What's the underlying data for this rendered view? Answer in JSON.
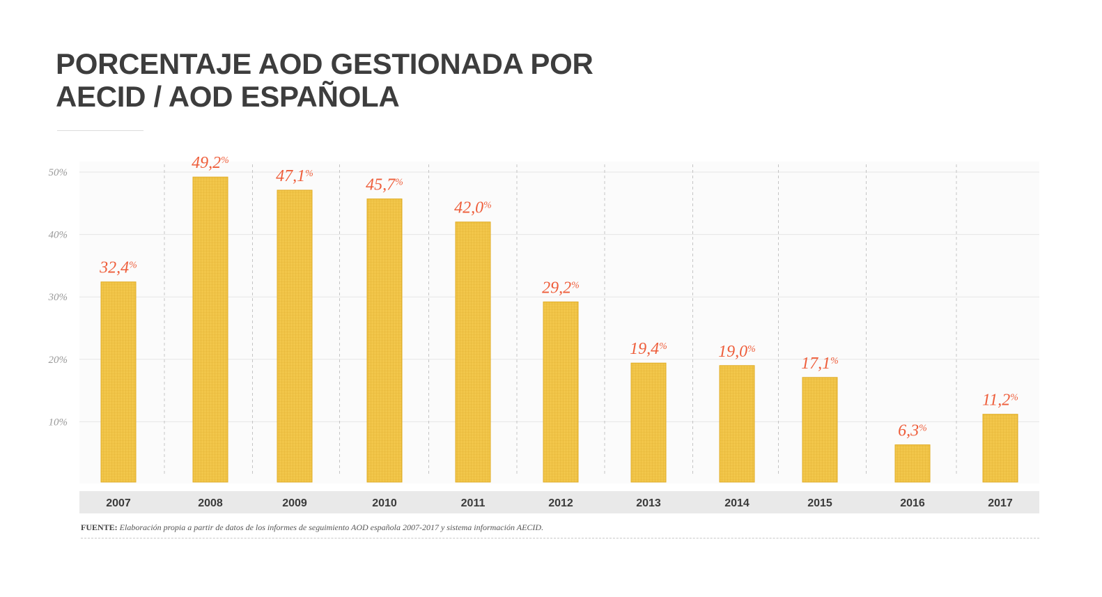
{
  "title_lines": [
    "PORCENTAJE AOD GESTIONADA POR",
    "AECID / AOD ESPAÑOLA"
  ],
  "source": {
    "label": "FUENTE:",
    "text": "Elaboración propia a partir de datos de los informes de seguimiento AOD española 2007-2017 y sistema información AECID."
  },
  "colors": {
    "bar": "#f2c64a",
    "bar_edge": "#e0ac25",
    "value_label": "#ee5d3a",
    "title": "#3d3d3d",
    "axis_band": "#e9e9e9"
  },
  "chart_data": {
    "type": "bar",
    "title": "PORCENTAJE AOD GESTIONADA POR AECID / AOD ESPAÑOLA",
    "categories": [
      "2007",
      "2008",
      "2009",
      "2010",
      "2011",
      "2012",
      "2013",
      "2014",
      "2015",
      "2016",
      "2017"
    ],
    "values": [
      32.4,
      49.2,
      47.1,
      45.7,
      42.0,
      29.2,
      19.4,
      19.0,
      17.1,
      6.3,
      11.2
    ],
    "value_labels": [
      "32,4",
      "49,2",
      "47,1",
      "45,7",
      "42,0",
      "29,2",
      "19,4",
      "19,0",
      "17,1",
      "6,3",
      "11,2"
    ],
    "value_suffix": "%",
    "yticks": [
      10,
      20,
      30,
      40,
      50
    ],
    "ytick_labels": [
      "10%",
      "20%",
      "30%",
      "40%",
      "50%"
    ],
    "ylim": [
      0,
      52
    ],
    "xlabel": "",
    "ylabel": "",
    "grid": true,
    "legend": "none"
  }
}
